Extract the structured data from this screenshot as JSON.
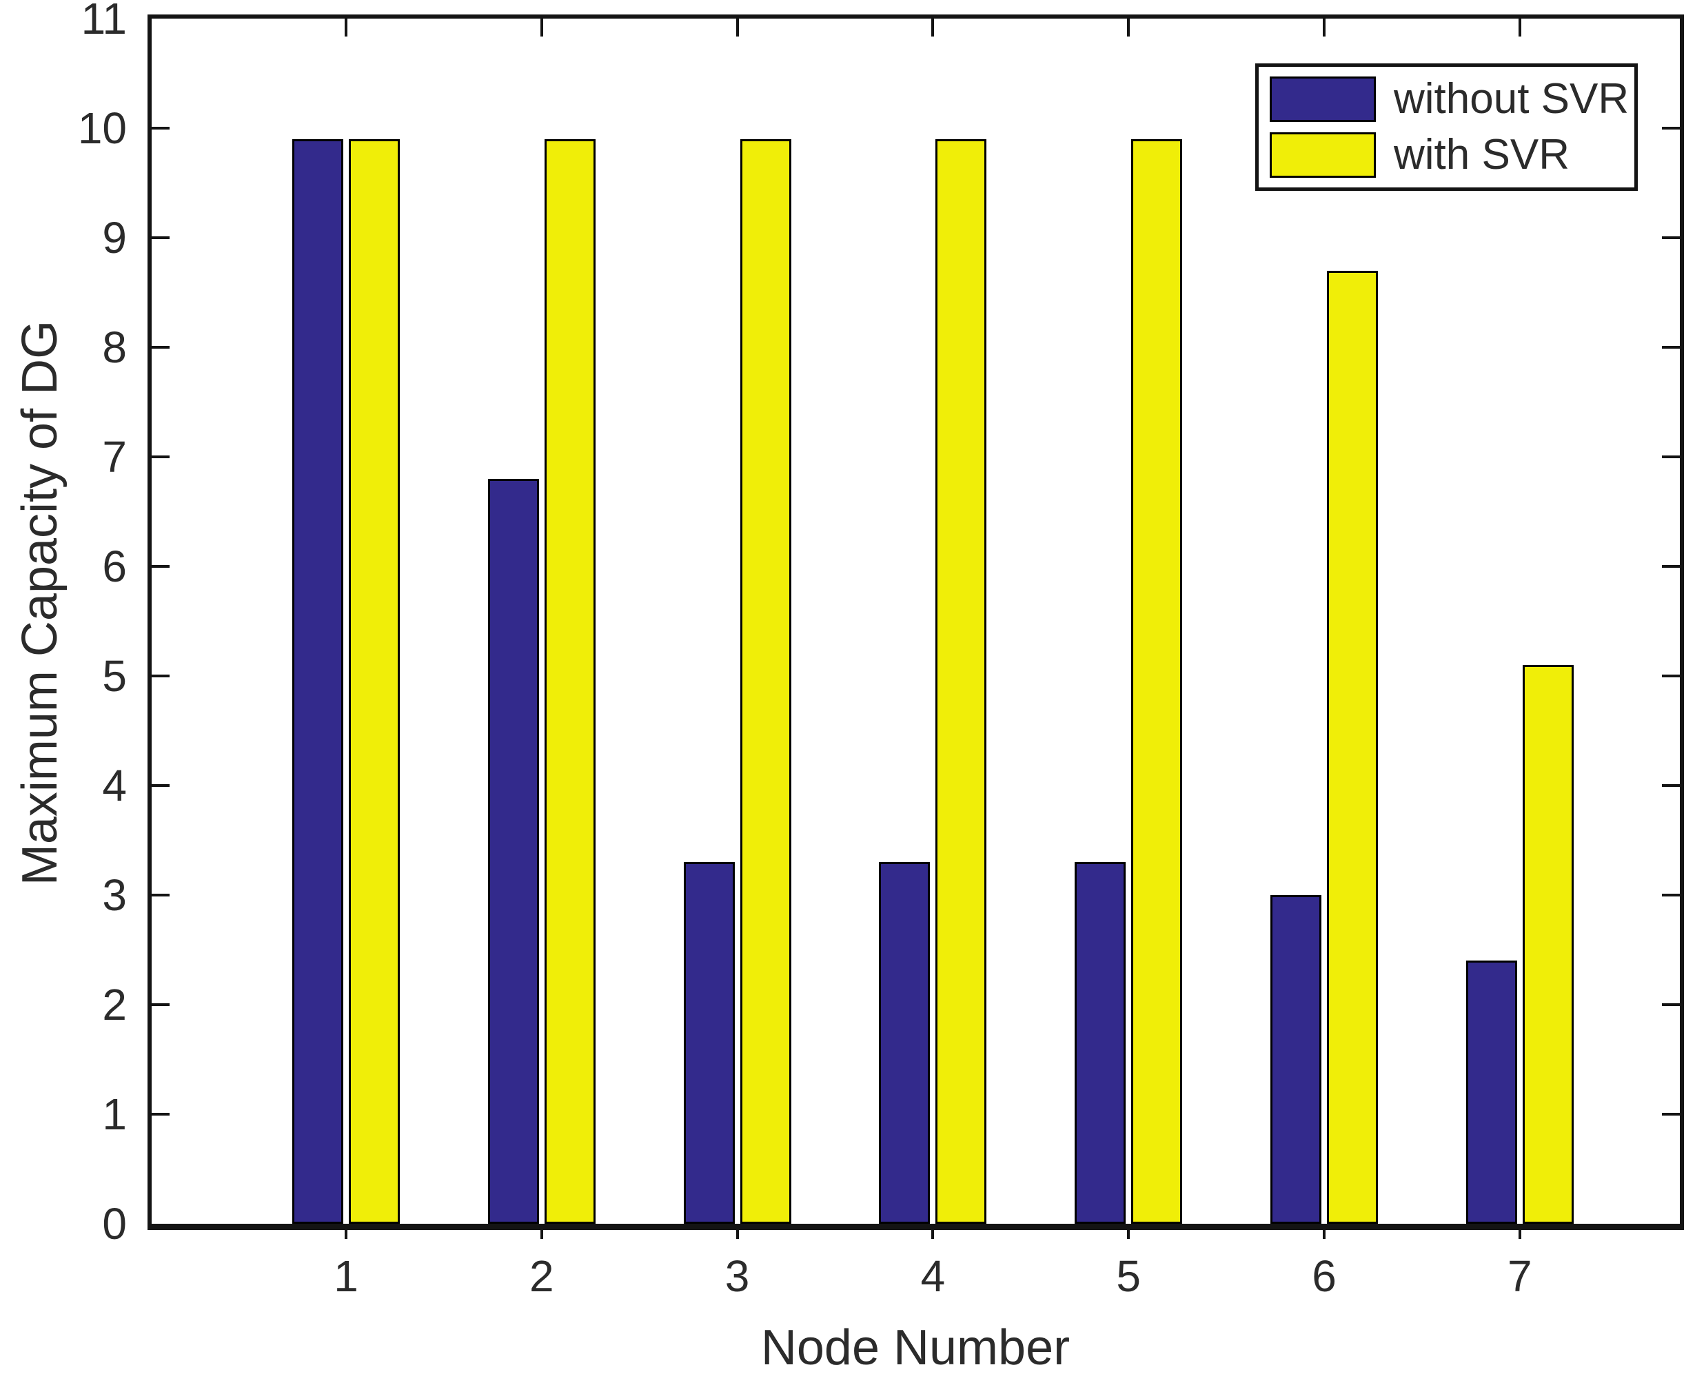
{
  "chart_data": {
    "type": "bar",
    "title": "",
    "xlabel": "Node Number",
    "ylabel": "Maximum Capacity of DG",
    "categories": [
      "1",
      "2",
      "3",
      "4",
      "5",
      "6",
      "7"
    ],
    "series": [
      {
        "name": "without SVR",
        "color": "#332a8c",
        "values": [
          9.9,
          6.8,
          3.3,
          3.3,
          3.3,
          3.0,
          2.4
        ]
      },
      {
        "name": "with SVR",
        "color": "#f0ee08",
        "values": [
          9.9,
          9.9,
          9.9,
          9.9,
          9.9,
          8.7,
          5.1
        ]
      }
    ],
    "ylim": [
      0,
      11
    ],
    "yticks": [
      0,
      1,
      2,
      3,
      4,
      5,
      6,
      7,
      8,
      9,
      10,
      11
    ],
    "grid": false,
    "legend_position": "top-right",
    "axis_color": "#141414",
    "background_color": "#ffffff"
  }
}
